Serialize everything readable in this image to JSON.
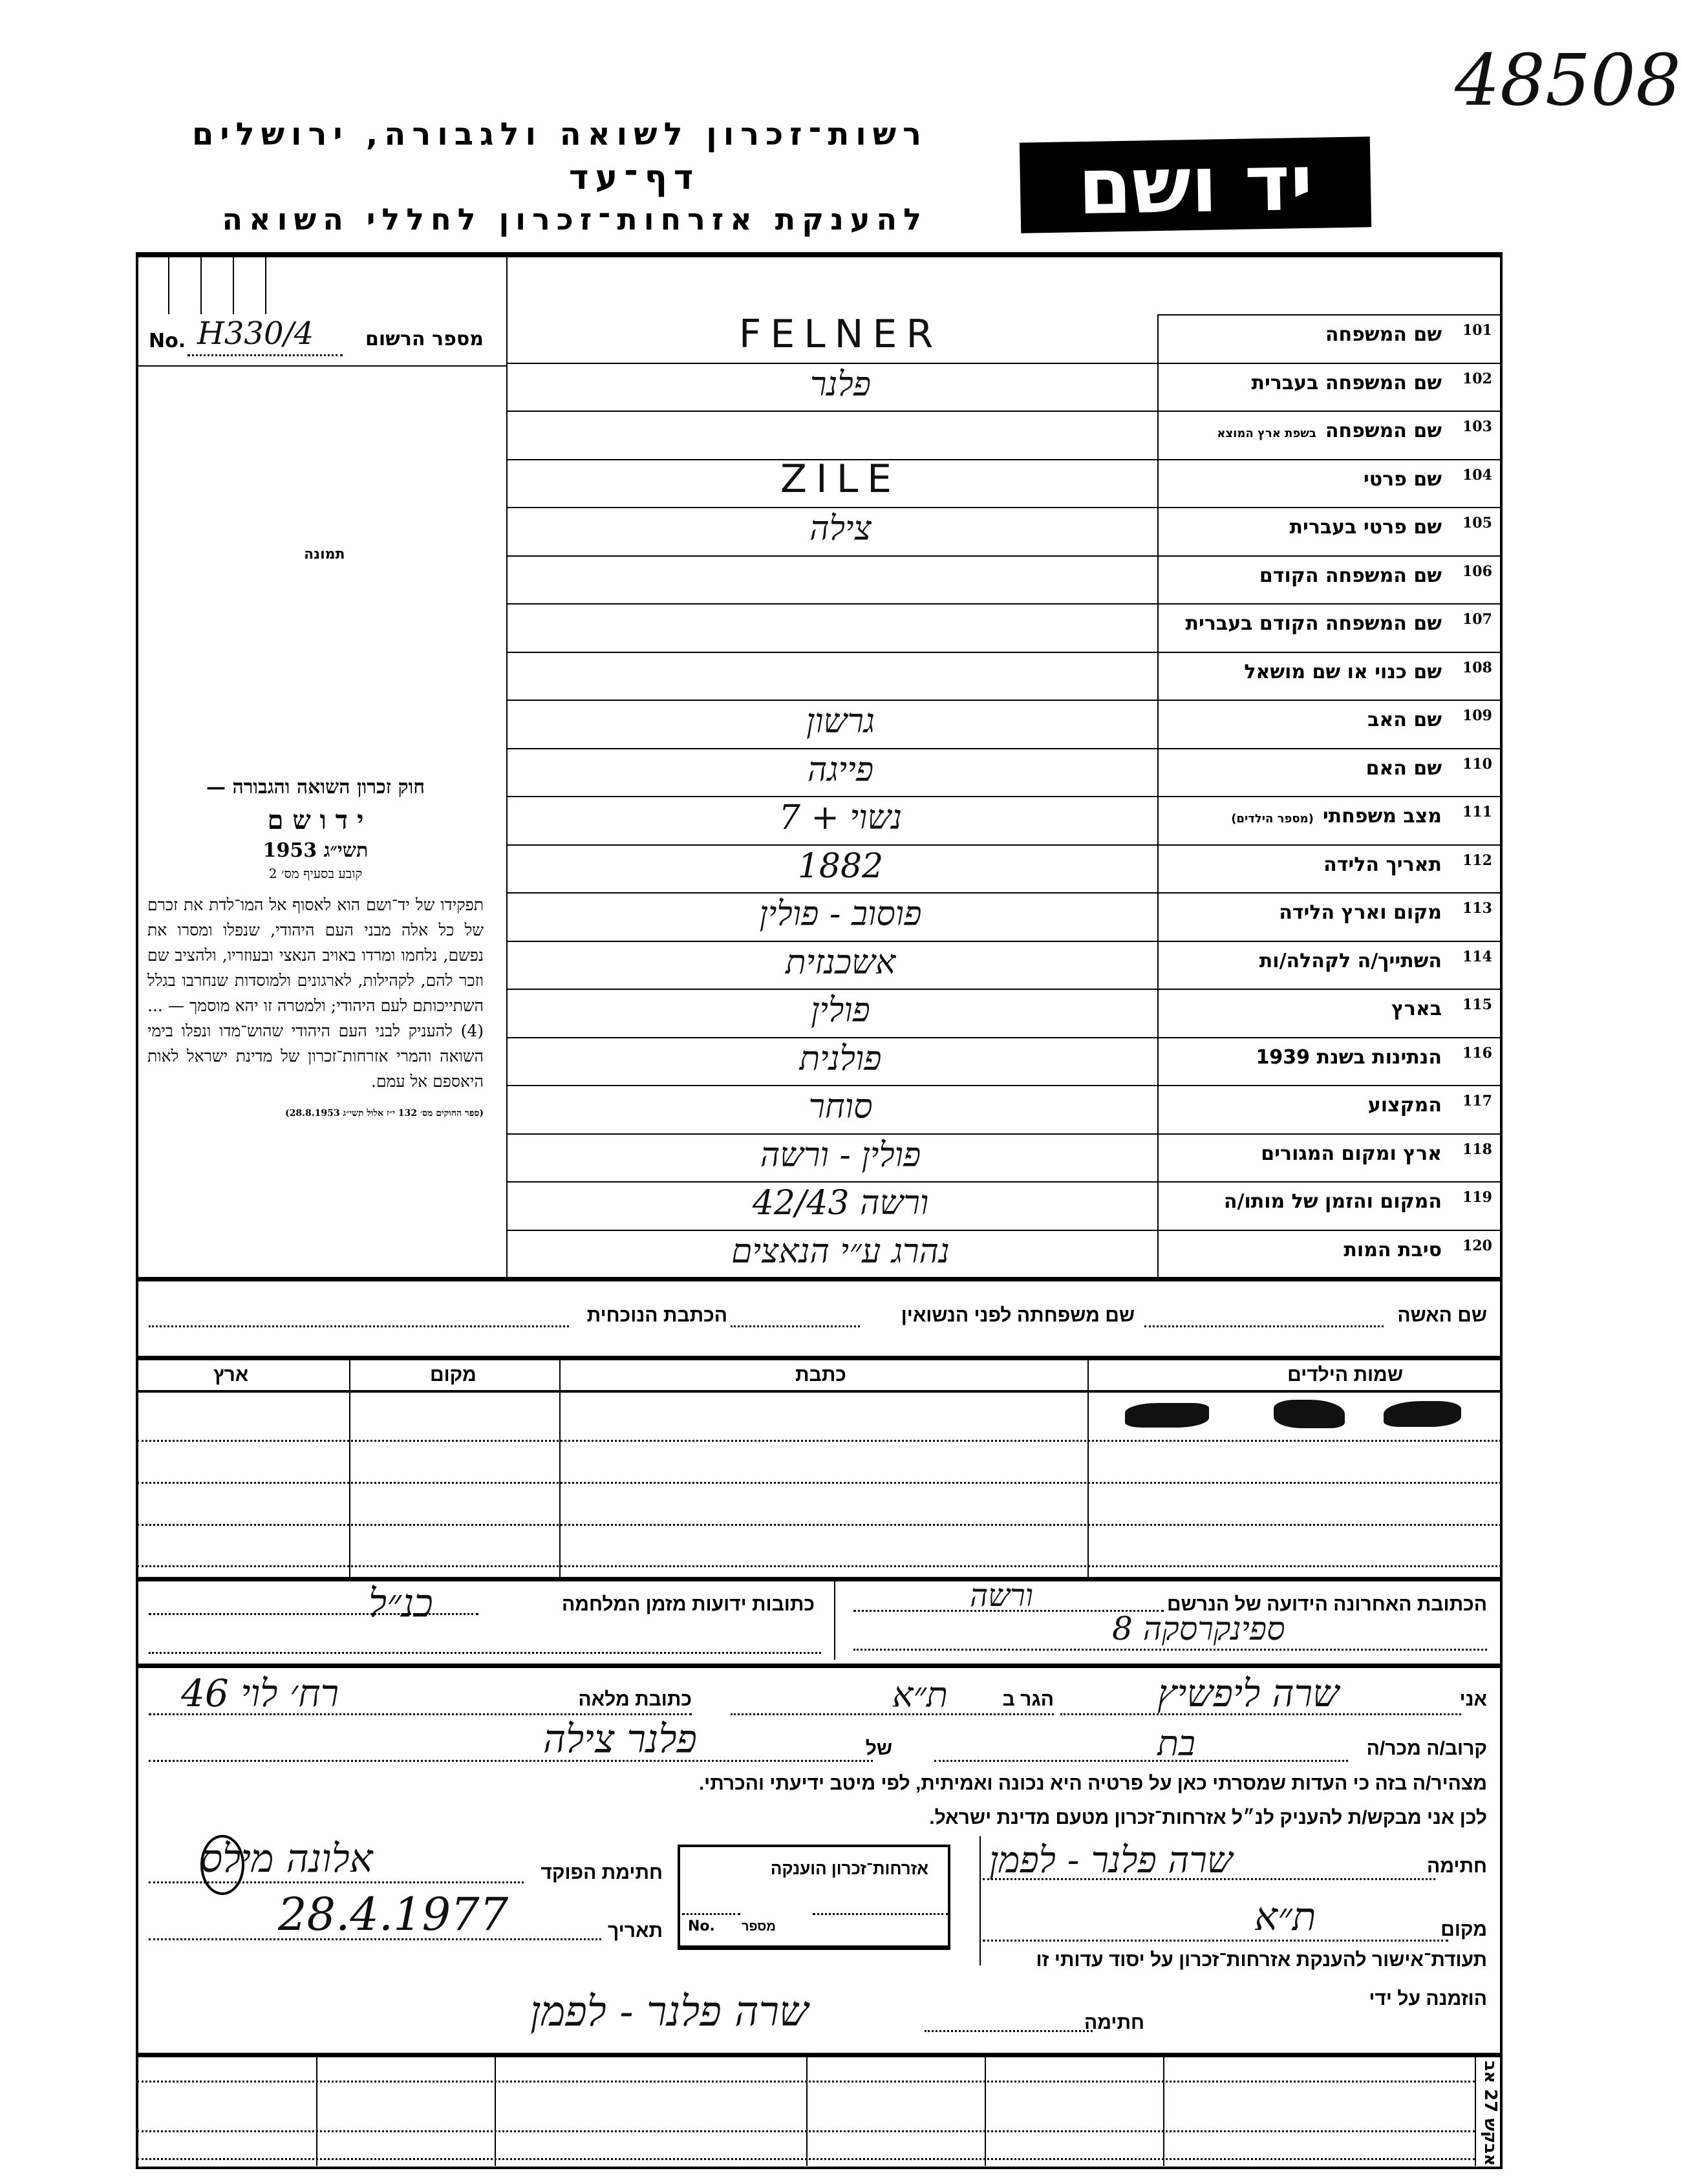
{
  "archive_number": "48508",
  "header": {
    "logo_text": "יד ושם",
    "line1": "רשות־זכרון לשואה ולגבורה, ירושלים",
    "line2": "דף־עד",
    "line3": "להענקת אזרחות־זכרון לחללי השואה"
  },
  "registration": {
    "no_label": "No.",
    "label": "מספר הרשום",
    "value": "H330/4",
    "photo_label": "תמונה"
  },
  "law_box": {
    "title": "חוק זכרון השואה והגבורה —",
    "name": "י ד ו ש ם",
    "year": "תשי״ג 1953",
    "clause": "קובע בסעיף מס׳ 2",
    "body": "תפקידו של יד־ושם הוא לאסוף אל המו־לדת את זכרם של כל אלה מבני העם היהודי, שנפלו ומסרו את נפשם, נלחמו ומרדו באויב הנאצי ובעוזריו, ולהציב שם וזכר להם, לקהילות, לארגונים ולמוסדות שנחרבו בגלל השתייכותם לעם היהודי; ולמטרה זו יהא מוסמך — ... (4) להעניק לבני העם היהודי שהוש־מדו ונפלו בימי השואה והמרי אזרחות־זכרון של מדינת ישראל לאות היאספם אל עמם.",
    "footnote": "(ספר החוקים מס׳ 132 י״ז אלול תשי״ג 28.8.1953)"
  },
  "fields": [
    {
      "num": "101",
      "label": "שם המשפחה",
      "value": "FELNER"
    },
    {
      "num": "102",
      "label": "שם המשפחה בעברית",
      "value": "פלנר"
    },
    {
      "num": "103",
      "label": "שם המשפחה",
      "label_small": "בשפת ארץ המוצא",
      "value": ""
    },
    {
      "num": "104",
      "label": "שם פרטי",
      "value": "ZILE"
    },
    {
      "num": "105",
      "label": "שם פרטי בעברית",
      "value": "צילה"
    },
    {
      "num": "106",
      "label": "שם המשפחה הקודם",
      "value": ""
    },
    {
      "num": "107",
      "label": "שם המשפחה הקודם בעברית",
      "value": ""
    },
    {
      "num": "108",
      "label": "שם כנוי או שם מושאל",
      "value": ""
    },
    {
      "num": "109",
      "label": "שם האב",
      "value": "גרשון"
    },
    {
      "num": "110",
      "label": "שם האם",
      "value": "פייגה"
    },
    {
      "num": "111",
      "label": "מצב משפחתי",
      "label_small": "(מספר הילדים)",
      "value": "נשוי + 7"
    },
    {
      "num": "112",
      "label": "תאריך הלידה",
      "value": "1882"
    },
    {
      "num": "113",
      "label": "מקום וארץ הלידה",
      "value": "פוסוב - פולין"
    },
    {
      "num": "114",
      "label": "השתייך/ה לקהלה/ות",
      "value": "אשכנזית"
    },
    {
      "num": "115",
      "label": "בארץ",
      "value": "פולין"
    },
    {
      "num": "116",
      "label": "הנתינות בשנת 1939",
      "value": "פולנית"
    },
    {
      "num": "117",
      "label": "המקצוע",
      "value": "סוחר"
    },
    {
      "num": "118",
      "label": "ארץ ומקום המגורים",
      "value": "פולין - ורשה"
    },
    {
      "num": "119",
      "label": "המקום והזמן של מותו/ה",
      "value": "ורשה 42/43"
    },
    {
      "num": "120",
      "label": "סיבת המות",
      "value": "נהרג ע״י הנאצים"
    }
  ],
  "wife": {
    "name_label": "שם האשה",
    "maiden_label": "שם משפחתה לפני הנשואין",
    "address_label": "הכתבת הנוכחית"
  },
  "children_table": {
    "headers": [
      "שמות הילדים",
      "כתבת",
      "מקום",
      "ארץ"
    ]
  },
  "last_address": {
    "label": "הכתובת האחרונה הידועה של הנרשם",
    "value_line1": "ורשה",
    "value_line2": "ספינקרסקה 8",
    "wartime_label": "כתובות ידועות מזמן המלחמה",
    "wartime_value": "כנ״ל"
  },
  "declarant": {
    "i_label": "אני",
    "name": "שרה ליפשיץ",
    "resides_label": "הגר ב",
    "city": "ת״א",
    "address_label": "כתובת מלאה",
    "address": "רח׳ לוי 46",
    "relation_label": "קרוב/ה מכר/ה",
    "relation": "בת",
    "of_label": "של",
    "of_name": "פלנר צילה",
    "statement1": "מצהיר/ה בזה כי העדות שמסרתי כאן על פרטיה היא נכונה ואמיתית, לפי מיטב ידיעתי והכרתי.",
    "statement2": "לכן אני מבקש/ת להעניק לנ״ל אזרחות־זכרון מטעם מדינת ישראל.",
    "signature_label": "חתימה",
    "signature": "שרה פלנר - לפמן",
    "place_label": "מקום",
    "place": "ת״א"
  },
  "official": {
    "signature_label": "חתימת הפוקד",
    "signature": "אלונה מילס",
    "date_label": "תאריך",
    "date": "28.4.1977"
  },
  "stamp_box": {
    "title": "אזרחות־זכרון הוענקה",
    "no_label": "No.",
    "number_label": "מספר"
  },
  "certificate": {
    "line1": "תעודת־אישור להענקת אזרחות־זכרון על יסוד עדותי זו",
    "line2": "הוזמנה על ידי",
    "signature_label": "חתימה",
    "signature": "שרה פלנר - לפמן"
  },
  "side_code": "אבקש 27 אב"
}
